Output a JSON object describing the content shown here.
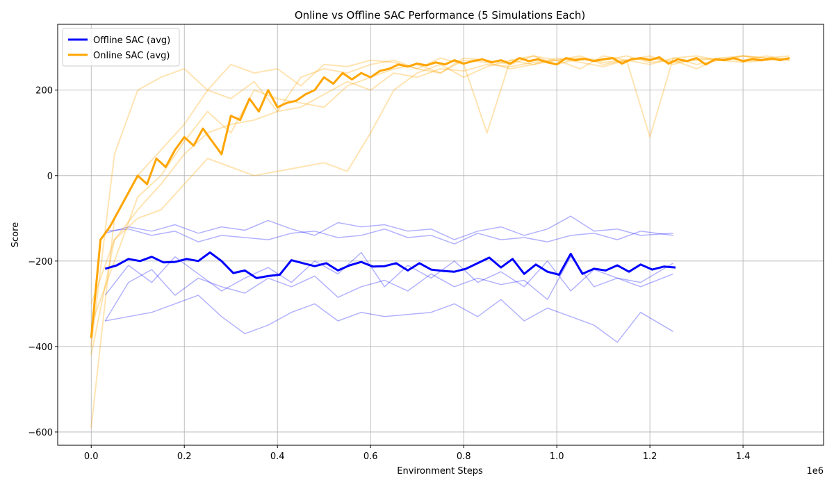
{
  "chart_data": {
    "type": "line",
    "title": "Online vs Offline SAC Performance (5 Simulations Each)",
    "x_label": "Environment Steps",
    "y_label": "Score",
    "x_offset_label": "1e6",
    "grid": true,
    "legend": "upper left",
    "xlim": [
      -72000,
      1573000
    ],
    "ylim": [
      -631,
      354
    ],
    "xticks": [
      {
        "value": 0,
        "label": "0.0"
      },
      {
        "value": 200000,
        "label": "0.2"
      },
      {
        "value": 400000,
        "label": "0.4"
      },
      {
        "value": 600000,
        "label": "0.6"
      },
      {
        "value": 800000,
        "label": "0.8"
      },
      {
        "value": 1000000,
        "label": "1.0"
      },
      {
        "value": 1200000,
        "label": "1.2"
      },
      {
        "value": 1400000,
        "label": "1.4"
      }
    ],
    "yticks": [
      {
        "value": -600,
        "label": "−600"
      },
      {
        "value": -400,
        "label": "−400"
      },
      {
        "value": -200,
        "label": "−200"
      },
      0,
      200
    ],
    "series": [
      {
        "color": "#0000ff",
        "opacity": 0.3,
        "width": 1.5,
        "x": [
          30000,
          80000,
          130000,
          180000,
          230000,
          280000,
          330000,
          380000,
          430000,
          480000,
          530000,
          580000,
          630000,
          680000,
          730000,
          780000,
          830000,
          880000,
          930000,
          980000,
          1030000,
          1080000,
          1130000,
          1180000,
          1250000
        ],
        "values": [
          -135,
          -120,
          -130,
          -115,
          -135,
          -120,
          -128,
          -105,
          -125,
          -140,
          -110,
          -120,
          -115,
          -130,
          -125,
          -150,
          -130,
          -120,
          -140,
          -125,
          -95,
          -130,
          -125,
          -140,
          -135
        ]
      },
      {
        "color": "#0000ff",
        "opacity": 0.3,
        "width": 1.5,
        "x": [
          30000,
          80000,
          130000,
          180000,
          230000,
          280000,
          330000,
          380000,
          430000,
          480000,
          530000,
          580000,
          630000,
          680000,
          730000,
          780000,
          830000,
          880000,
          930000,
          980000,
          1030000,
          1080000,
          1130000,
          1180000,
          1250000
        ],
        "values": [
          -130,
          -125,
          -140,
          -130,
          -155,
          -140,
          -145,
          -150,
          -135,
          -130,
          -145,
          -140,
          -125,
          -145,
          -140,
          -160,
          -135,
          -150,
          -145,
          -155,
          -140,
          -135,
          -150,
          -130,
          -140
        ]
      },
      {
        "color": "#0000ff",
        "opacity": 0.3,
        "width": 1.5,
        "x": [
          30000,
          80000,
          130000,
          180000,
          230000,
          280000,
          330000,
          380000,
          430000,
          480000,
          530000,
          580000,
          630000,
          680000,
          730000,
          780000,
          830000,
          880000,
          930000,
          980000,
          1030000,
          1080000,
          1130000,
          1180000,
          1250000
        ],
        "values": [
          -280,
          -210,
          -250,
          -190,
          -230,
          -270,
          -240,
          -215,
          -250,
          -200,
          -230,
          -180,
          -260,
          -210,
          -240,
          -200,
          -250,
          -225,
          -260,
          -200,
          -270,
          -220,
          -240,
          -260,
          -230
        ]
      },
      {
        "color": "#0000ff",
        "opacity": 0.3,
        "width": 1.5,
        "x": [
          30000,
          80000,
          130000,
          180000,
          230000,
          280000,
          330000,
          380000,
          430000,
          480000,
          530000,
          580000,
          630000,
          680000,
          730000,
          780000,
          830000,
          880000,
          930000,
          980000,
          1030000,
          1080000,
          1130000,
          1180000,
          1250000
        ],
        "values": [
          -340,
          -250,
          -220,
          -280,
          -240,
          -260,
          -275,
          -240,
          -260,
          -235,
          -285,
          -260,
          -245,
          -270,
          -230,
          -260,
          -240,
          -255,
          -245,
          -290,
          -190,
          -260,
          -240,
          -250,
          -205
        ]
      },
      {
        "color": "#0000ff",
        "opacity": 0.3,
        "width": 1.5,
        "x": [
          30000,
          80000,
          130000,
          180000,
          230000,
          280000,
          330000,
          380000,
          430000,
          480000,
          530000,
          580000,
          630000,
          680000,
          730000,
          780000,
          830000,
          880000,
          930000,
          980000,
          1030000,
          1080000,
          1130000,
          1180000,
          1250000
        ],
        "values": [
          -340,
          -330,
          -320,
          -300,
          -280,
          -330,
          -370,
          -350,
          -320,
          -300,
          -340,
          -320,
          -330,
          -325,
          -320,
          -300,
          -330,
          -290,
          -340,
          -310,
          -330,
          -350,
          -390,
          -320,
          -365
        ]
      },
      {
        "color": "#ffa500",
        "opacity": 0.3,
        "width": 2,
        "x": [
          0,
          50000,
          100000,
          150000,
          200000,
          250000,
          300000,
          350000,
          400000,
          450000,
          500000,
          550000,
          600000,
          650000,
          700000,
          750000,
          800000,
          850000,
          900000,
          950000,
          1000000,
          1050000,
          1100000,
          1150000,
          1200000,
          1250000,
          1300000,
          1350000,
          1400000,
          1450000,
          1500000
        ],
        "values": [
          -590,
          -100,
          0,
          60,
          120,
          200,
          180,
          220,
          150,
          230,
          250,
          240,
          260,
          270,
          250,
          275,
          260,
          100,
          270,
          280,
          260,
          275,
          270,
          280,
          265,
          270,
          250,
          275,
          280,
          270,
          275
        ]
      },
      {
        "color": "#ffa500",
        "opacity": 0.3,
        "width": 2,
        "x": [
          0,
          50000,
          100000,
          150000,
          200000,
          250000,
          300000,
          350000,
          400000,
          450000,
          500000,
          550000,
          600000,
          650000,
          700000,
          750000,
          800000,
          850000,
          900000,
          950000,
          1000000,
          1050000,
          1100000,
          1150000,
          1200000,
          1250000,
          1300000,
          1350000,
          1400000,
          1450000,
          1500000
        ],
        "values": [
          -400,
          50,
          200,
          230,
          250,
          200,
          260,
          240,
          250,
          210,
          260,
          255,
          270,
          265,
          250,
          240,
          275,
          270,
          260,
          280,
          270,
          275,
          265,
          270,
          280,
          260,
          275,
          270,
          280,
          275,
          270
        ]
      },
      {
        "color": "#ffa500",
        "opacity": 0.3,
        "width": 2,
        "x": [
          0,
          50000,
          100000,
          150000,
          200000,
          250000,
          300000,
          350000,
          400000,
          450000,
          500000,
          550000,
          600000,
          650000,
          700000,
          750000,
          800000,
          850000,
          900000,
          950000,
          1000000,
          1050000,
          1100000,
          1150000,
          1200000,
          1250000,
          1300000,
          1350000,
          1400000,
          1450000,
          1500000
        ],
        "values": [
          -300,
          -150,
          -100,
          -80,
          -20,
          40,
          20,
          0,
          10,
          20,
          30,
          10,
          100,
          200,
          240,
          260,
          230,
          255,
          270,
          260,
          275,
          265,
          255,
          270,
          90,
          275,
          260,
          270,
          280,
          275,
          280
        ]
      },
      {
        "color": "#ffa500",
        "opacity": 0.3,
        "width": 2,
        "x": [
          0,
          50000,
          100000,
          150000,
          200000,
          250000,
          300000,
          350000,
          400000,
          450000,
          500000,
          550000,
          600000,
          650000,
          700000,
          750000,
          800000,
          850000,
          900000,
          950000,
          1000000,
          1050000,
          1100000,
          1150000,
          1200000,
          1250000,
          1300000,
          1350000,
          1400000,
          1450000,
          1500000
        ],
        "values": [
          -350,
          -200,
          -50,
          0,
          80,
          150,
          100,
          200,
          180,
          170,
          160,
          210,
          230,
          250,
          260,
          240,
          270,
          265,
          250,
          260,
          270,
          250,
          280,
          270,
          260,
          275,
          280,
          270,
          265,
          270,
          275
        ]
      },
      {
        "color": "#ffa500",
        "opacity": 0.3,
        "width": 2,
        "x": [
          0,
          50000,
          100000,
          150000,
          200000,
          250000,
          300000,
          350000,
          400000,
          450000,
          500000,
          550000,
          600000,
          650000,
          700000,
          750000,
          800000,
          850000,
          900000,
          950000,
          1000000,
          1050000,
          1100000,
          1150000,
          1200000,
          1250000,
          1300000,
          1350000,
          1400000,
          1450000,
          1500000
        ],
        "values": [
          -420,
          -150,
          -80,
          -20,
          50,
          100,
          120,
          130,
          150,
          160,
          190,
          220,
          200,
          240,
          230,
          250,
          245,
          260,
          255,
          265,
          270,
          280,
          260,
          270,
          275,
          265,
          270,
          275,
          270,
          280,
          270
        ]
      },
      {
        "name": "Offline SAC (avg)",
        "color": "#0000ff",
        "opacity": 1,
        "width": 3,
        "x": [
          30000,
          55000,
          80000,
          105000,
          130000,
          155000,
          180000,
          205000,
          230000,
          255000,
          280000,
          305000,
          330000,
          355000,
          380000,
          405000,
          430000,
          455000,
          480000,
          505000,
          530000,
          555000,
          580000,
          605000,
          630000,
          655000,
          680000,
          705000,
          730000,
          755000,
          780000,
          805000,
          830000,
          855000,
          880000,
          905000,
          930000,
          955000,
          980000,
          1005000,
          1030000,
          1055000,
          1080000,
          1105000,
          1130000,
          1155000,
          1180000,
          1205000,
          1230000,
          1255000
        ],
        "values": [
          -218,
          -210,
          -195,
          -200,
          -190,
          -203,
          -202,
          -195,
          -200,
          -180,
          -200,
          -228,
          -222,
          -240,
          -235,
          -232,
          -198,
          -205,
          -212,
          -205,
          -222,
          -210,
          -202,
          -213,
          -212,
          -205,
          -222,
          -205,
          -220,
          -223,
          -225,
          -218,
          -205,
          -192,
          -215,
          -195,
          -230,
          -208,
          -225,
          -232,
          -183,
          -230,
          -218,
          -222,
          -210,
          -225,
          -208,
          -220,
          -213,
          -215
        ]
      },
      {
        "name": "Online SAC (avg)",
        "color": "#ffa500",
        "opacity": 1,
        "width": 3,
        "x": [
          0,
          20000,
          40000,
          60000,
          80000,
          100000,
          120000,
          140000,
          160000,
          180000,
          200000,
          220000,
          240000,
          260000,
          280000,
          300000,
          320000,
          340000,
          360000,
          380000,
          400000,
          420000,
          440000,
          460000,
          480000,
          500000,
          520000,
          540000,
          560000,
          580000,
          600000,
          620000,
          640000,
          660000,
          680000,
          700000,
          720000,
          740000,
          760000,
          780000,
          800000,
          820000,
          840000,
          860000,
          880000,
          900000,
          920000,
          940000,
          960000,
          980000,
          1000000,
          1020000,
          1040000,
          1060000,
          1080000,
          1100000,
          1120000,
          1140000,
          1160000,
          1180000,
          1200000,
          1220000,
          1240000,
          1260000,
          1280000,
          1300000,
          1320000,
          1340000,
          1360000,
          1380000,
          1400000,
          1420000,
          1440000,
          1460000,
          1480000,
          1500000
        ],
        "values": [
          -380,
          -150,
          -120,
          -80,
          -40,
          0,
          -20,
          40,
          20,
          60,
          90,
          70,
          110,
          80,
          50,
          140,
          130,
          180,
          150,
          200,
          160,
          170,
          175,
          190,
          200,
          230,
          215,
          240,
          225,
          240,
          230,
          245,
          250,
          260,
          255,
          262,
          258,
          265,
          260,
          270,
          262,
          268,
          272,
          265,
          270,
          262,
          275,
          268,
          272,
          265,
          260,
          275,
          270,
          273,
          268,
          272,
          275,
          262,
          272,
          275,
          270,
          277,
          262,
          272,
          268,
          275,
          260,
          272,
          270,
          275,
          268,
          272,
          270,
          274,
          270,
          275
        ]
      }
    ]
  }
}
